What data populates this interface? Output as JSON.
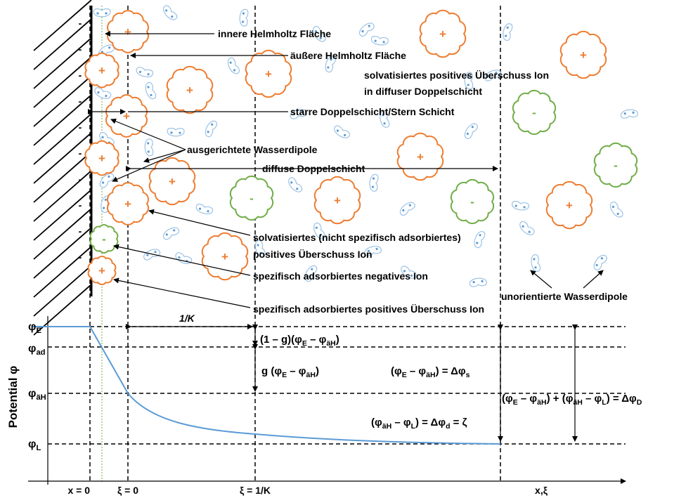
{
  "labels": {
    "inner_helmholtz": "innere Helmholtz Fläche",
    "outer_helmholtz": "äußere Helmholtz Fläche",
    "solvated_ion_1": "solvatisiertes positives Überschuss Ion",
    "solvated_ion_2": "in diffuser Doppelschicht",
    "stern": "starre Doppelschicht/Stern Schicht",
    "aligned_dipoles": "ausgerichtete Wasserdipole",
    "diffuse": "diffuse Doppelschicht",
    "non_specific_1": "solvatisiertes (nicht spezifisch adsorbiertes)",
    "non_specific_2": "positives Überschuss Ion",
    "specific_negative": "spezifisch adsorbiertes negatives Ion",
    "specific_positive": "spezifisch adsorbiertes positives Überschuss Ion",
    "unoriented_dipoles": "unorientierte Wasserdipole",
    "debye_length": "1/K",
    "y_axis": "Potential φ",
    "x_zero": "x = 0",
    "xi_zero": "ξ = 0",
    "xi_debye": "ξ = 1/K",
    "x_axis": "x,ξ"
  },
  "wall_charges": [
    "-",
    "-",
    "-",
    "-",
    "-",
    "-",
    "-",
    "-",
    "-",
    "-"
  ],
  "ions": [
    {
      "sign": "+",
      "color": "#ed7d31"
    },
    {
      "sign": "+",
      "color": "#ed7d31"
    },
    {
      "sign": "+",
      "color": "#ed7d31"
    },
    {
      "sign": "+",
      "color": "#ed7d31"
    },
    {
      "sign": "+",
      "color": "#ed7d31"
    },
    {
      "sign": "+",
      "color": "#ed7d31"
    },
    {
      "sign": "+",
      "color": "#ed7d31"
    },
    {
      "sign": "+",
      "color": "#ed7d31"
    },
    {
      "sign": "+",
      "color": "#ed7d31"
    },
    {
      "sign": "+",
      "color": "#ed7d31"
    },
    {
      "sign": "+",
      "color": "#ed7d31"
    },
    {
      "sign": "+",
      "color": "#ed7d31"
    },
    {
      "sign": "+",
      "color": "#ed7d31"
    },
    {
      "sign": "+",
      "color": "#ed7d31"
    },
    {
      "sign": "+",
      "color": "#ed7d31"
    },
    {
      "sign": "-",
      "color": "#70ad47"
    },
    {
      "sign": "-",
      "color": "#70ad47"
    },
    {
      "sign": "-",
      "color": "#70ad47"
    },
    {
      "sign": "-",
      "color": "#70ad47"
    },
    {
      "sign": "-",
      "color": "#70ad47"
    }
  ],
  "potentials": [
    {
      "parts": [
        "φ",
        "E"
      ]
    },
    {
      "parts": [
        "φ",
        "ad"
      ]
    },
    {
      "parts": [
        "φ",
        "äH"
      ]
    },
    {
      "parts": [
        "φ",
        "L"
      ]
    }
  ],
  "formulas": [
    {
      "parts": [
        "(1 – g)(φ",
        "E",
        " – φ",
        "äH",
        ")"
      ]
    },
    {
      "parts": [
        "g (φ",
        "E",
        " – φ",
        "äH",
        ")"
      ]
    },
    {
      "parts": [
        "(φ",
        "E",
        " – φ",
        "äH",
        ") = Δφ",
        "s"
      ]
    },
    {
      "parts": [
        "(φ",
        "E",
        " – φ",
        "äH",
        ") + (φ",
        "äH",
        " – φ",
        "L",
        ") = Δφ",
        "D"
      ]
    },
    {
      "parts": [
        "(φ",
        "äH",
        " – φ",
        "L",
        ") = Δφ",
        "d",
        " = ζ"
      ]
    }
  ]
}
